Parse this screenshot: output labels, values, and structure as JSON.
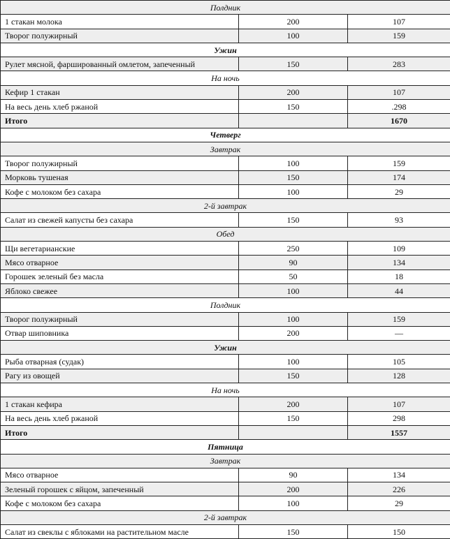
{
  "rows": [
    {
      "type": "section",
      "label": "Полдник"
    },
    {
      "type": "item",
      "name": "1 стакан молока",
      "weight": "200",
      "kcal": "107"
    },
    {
      "type": "item",
      "name": "Творог полужирный",
      "weight": "100",
      "kcal": "159"
    },
    {
      "type": "section-bold",
      "label": "Ужин"
    },
    {
      "type": "item",
      "name": "Рулет мясной, фаршированный омлетом, запеченный",
      "weight": "150",
      "kcal": "283"
    },
    {
      "type": "section",
      "label": "На ночь"
    },
    {
      "type": "item",
      "name": "Кефир 1 стакан",
      "weight": "200",
      "kcal": "107"
    },
    {
      "type": "item",
      "name": "На весь день хлеб ржаной",
      "weight": "150",
      "kcal": ".298"
    },
    {
      "type": "total",
      "name": "Итого",
      "weight": "",
      "kcal": "1670"
    },
    {
      "type": "section-bold",
      "label": "Четверг"
    },
    {
      "type": "section",
      "label": "Завтрак"
    },
    {
      "type": "item",
      "name": "Творог полужирный",
      "weight": "100",
      "kcal": "159"
    },
    {
      "type": "item",
      "name": "Морковь тушеная",
      "weight": "150",
      "kcal": "174"
    },
    {
      "type": "item",
      "name": "Кофе с молоком без сахара",
      "weight": "100",
      "kcal": "29"
    },
    {
      "type": "section",
      "label": "2-й завтрак"
    },
    {
      "type": "item",
      "name": "Салат из свежей капусты без сахара",
      "weight": "150",
      "kcal": "93"
    },
    {
      "type": "section",
      "label": "Обед"
    },
    {
      "type": "item",
      "name": "Щи вегетарианские",
      "weight": "250",
      "kcal": "109"
    },
    {
      "type": "item",
      "name": "Мясо отварное",
      "weight": "90",
      "kcal": "134"
    },
    {
      "type": "item",
      "name": "Горошек зеленый без масла",
      "weight": "50",
      "kcal": "18"
    },
    {
      "type": "item",
      "name": "Яблоко свежее",
      "weight": "100",
      "kcal": "44"
    },
    {
      "type": "section",
      "label": "Полдник"
    },
    {
      "type": "item",
      "name": "Творог полужирный",
      "weight": "100",
      "kcal": "159"
    },
    {
      "type": "item",
      "name": "Отвар шиповника",
      "weight": "200",
      "kcal": "—"
    },
    {
      "type": "section-bold",
      "label": "Ужин"
    },
    {
      "type": "item",
      "name": "Рыба отварная (судак)",
      "weight": "100",
      "kcal": "105"
    },
    {
      "type": "item",
      "name": "Рагу из овощей",
      "weight": "150",
      "kcal": "128"
    },
    {
      "type": "section",
      "label": "На ночь"
    },
    {
      "type": "item",
      "name": "1 стакан кефира",
      "weight": "200",
      "kcal": "107"
    },
    {
      "type": "item",
      "name": "На весь день хлеб ржаной",
      "weight": "150",
      "kcal": "298"
    },
    {
      "type": "total",
      "name": "Итого",
      "weight": "",
      "kcal": "1557"
    },
    {
      "type": "section-bold",
      "label": "Пятница"
    },
    {
      "type": "section",
      "label": "Завтрак"
    },
    {
      "type": "item",
      "name": "Мясо отварное",
      "weight": "90",
      "kcal": "134"
    },
    {
      "type": "item",
      "name": "Зеленый горошек с яйцом, запеченный",
      "weight": "200",
      "kcal": "226"
    },
    {
      "type": "item",
      "name": "Кофе с молоком без сахара",
      "weight": "100",
      "kcal": "29"
    },
    {
      "type": "section",
      "label": "2-й завтрак"
    },
    {
      "type": "item",
      "name": "Салат из свеклы с яблоками на растительном масле",
      "weight": "150",
      "kcal": "150"
    }
  ]
}
